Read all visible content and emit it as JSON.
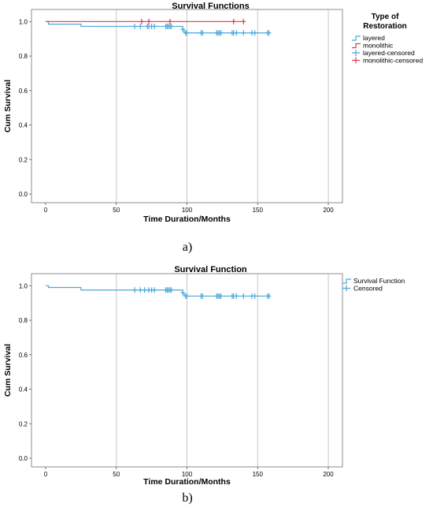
{
  "chart_data": [
    {
      "type": "line",
      "title": "Survival Functions",
      "xlabel": "Time Duration/Months",
      "ylabel": "Cum Survival",
      "xlim": [
        -10,
        210
      ],
      "ylim": [
        -0.05,
        1.07
      ],
      "xticks": [
        "0",
        "50",
        "100",
        "150",
        "200"
      ],
      "yticks": [
        "0.0",
        "0.2",
        "0.4",
        "0.6",
        "0.8",
        "1.0"
      ],
      "grid": "vertical",
      "legend_position": "right",
      "legend_title": "Type of Restoration",
      "series": [
        {
          "name": "layered",
          "color": "#4aa8dc",
          "steps": [
            [
              0,
              1.0
            ],
            [
              2,
              0.985
            ],
            [
              25,
              0.972
            ],
            [
              97,
              0.955
            ],
            [
              98,
              0.934
            ],
            [
              158,
              0.934
            ]
          ],
          "censored": [
            63,
            67,
            72,
            73,
            75,
            77,
            85,
            86,
            87,
            88,
            89,
            97,
            99,
            100,
            110,
            111,
            121,
            122,
            123,
            124,
            132,
            133,
            135,
            140,
            146,
            148,
            157,
            158
          ]
        },
        {
          "name": "monolithic",
          "color": "#e03a5a",
          "steps": [
            [
              0,
              1.0
            ],
            [
              140,
              1.0
            ]
          ],
          "censored": [
            68,
            73,
            88,
            133,
            140
          ]
        }
      ],
      "legend": [
        "layered",
        "monolithic",
        "layered-censored",
        "monolithic-censored"
      ]
    },
    {
      "type": "line",
      "title": "Survival Function",
      "xlabel": "Time Duration/Months",
      "ylabel": "Cum Survival",
      "xlim": [
        -10,
        210
      ],
      "ylim": [
        -0.05,
        1.07
      ],
      "xticks": [
        "0",
        "50",
        "100",
        "150",
        "200"
      ],
      "yticks": [
        "0.0",
        "0.2",
        "0.4",
        "0.6",
        "0.8",
        "1.0"
      ],
      "grid": "vertical",
      "legend_position": "right",
      "series": [
        {
          "name": "Survival Function",
          "color": "#4aa8dc",
          "steps": [
            [
              0,
              1.0
            ],
            [
              2,
              0.99
            ],
            [
              25,
              0.975
            ],
            [
              97,
              0.96
            ],
            [
              98,
              0.94
            ],
            [
              158,
              0.94
            ]
          ],
          "censored": [
            63,
            67,
            70,
            73,
            75,
            77,
            85,
            86,
            87,
            88,
            89,
            97,
            99,
            100,
            110,
            111,
            121,
            122,
            123,
            124,
            132,
            133,
            135,
            140,
            146,
            148,
            157,
            158
          ]
        }
      ],
      "legend": [
        "Survival Function",
        "Censored"
      ]
    }
  ],
  "captions": [
    "a)",
    "b)"
  ]
}
